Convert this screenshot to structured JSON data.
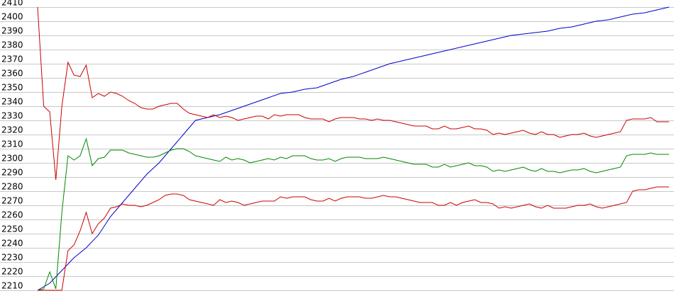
{
  "chart_data": {
    "type": "line",
    "title": "",
    "xlabel": "",
    "ylabel": "",
    "ylim": [
      2210,
      2410
    ],
    "yticks": [
      2210,
      2220,
      2230,
      2240,
      2250,
      2260,
      2270,
      2280,
      2290,
      2300,
      2310,
      2320,
      2330,
      2340,
      2350,
      2360,
      2370,
      2380,
      2390,
      2400,
      2410
    ],
    "xlim": [
      0,
      104
    ],
    "grid": true,
    "legend": "none",
    "series": [
      {
        "color": "#0000cc",
        "x": [
          0,
          2,
          4,
          6,
          8,
          10,
          12,
          14,
          16,
          18,
          20,
          22,
          24,
          26,
          28,
          30,
          32,
          34,
          36,
          38,
          40,
          42,
          44,
          46,
          48,
          50,
          52,
          54,
          56,
          58,
          60,
          62,
          64,
          66,
          68,
          70,
          72,
          74,
          76,
          78,
          80,
          82,
          84,
          86,
          88,
          90,
          92,
          94,
          96,
          98,
          100,
          102,
          104
        ],
        "values": [
          2210,
          2215,
          2224,
          2233,
          2240,
          2249,
          2262,
          2272,
          2282,
          2292,
          2300,
          2310,
          2320,
          2330,
          2332,
          2334,
          2337,
          2340,
          2343,
          2346,
          2349,
          2350,
          2352,
          2353,
          2356,
          2359,
          2361,
          2364,
          2367,
          2370,
          2372,
          2374,
          2376,
          2378,
          2380,
          2382,
          2384,
          2386,
          2388,
          2390,
          2391,
          2392,
          2393,
          2395,
          2396,
          2398,
          2400,
          2401,
          2403,
          2405,
          2406,
          2408,
          2410
        ]
      },
      {
        "color": "#cc0000",
        "x": [
          0,
          1,
          2,
          3,
          4,
          5,
          6,
          7,
          8,
          9,
          10,
          11,
          12,
          13,
          14,
          15,
          16,
          17,
          18,
          19,
          20,
          21,
          22,
          23,
          24,
          25,
          26,
          27,
          28,
          29,
          30,
          31,
          32,
          33,
          34,
          35,
          36,
          37,
          38,
          39,
          40,
          41,
          42,
          43,
          44,
          45,
          46,
          47,
          48,
          49,
          50,
          51,
          52,
          53,
          54,
          55,
          56,
          57,
          58,
          59,
          60,
          61,
          62,
          63,
          64,
          65,
          66,
          67,
          68,
          69,
          70,
          71,
          72,
          73,
          74,
          75,
          76,
          77,
          78,
          79,
          80,
          81,
          82,
          83,
          84,
          85,
          86,
          87,
          88,
          89,
          90,
          91,
          92,
          93,
          94,
          95,
          96,
          97,
          98,
          99,
          100,
          101,
          102,
          103,
          104
        ],
        "values": [
          2410,
          2340,
          2336,
          2288,
          2340,
          2371,
          2362,
          2361,
          2369,
          2346,
          2349,
          2347,
          2350,
          2349,
          2347,
          2344,
          2342,
          2339,
          2338,
          2338,
          2340,
          2341,
          2342,
          2342,
          2338,
          2335,
          2334,
          2333,
          2332,
          2334,
          2332,
          2333,
          2332,
          2330,
          2331,
          2332,
          2333,
          2333,
          2331,
          2334,
          2333,
          2334,
          2334,
          2334,
          2332,
          2331,
          2331,
          2331,
          2329,
          2331,
          2332,
          2332,
          2332,
          2331,
          2331,
          2330,
          2331,
          2330,
          2330,
          2329,
          2328,
          2327,
          2326,
          2326,
          2326,
          2324,
          2324,
          2326,
          2324,
          2324,
          2325,
          2326,
          2324,
          2324,
          2323,
          2320,
          2321,
          2320,
          2321,
          2322,
          2323,
          2321,
          2320,
          2322,
          2320,
          2320,
          2318,
          2319,
          2320,
          2320,
          2321,
          2319,
          2318,
          2319,
          2320,
          2321,
          2322,
          2330,
          2331,
          2331,
          2331,
          2332,
          2329,
          2329,
          2329
        ]
      },
      {
        "color": "#008800",
        "x": [
          0,
          1,
          2,
          3,
          4,
          5,
          6,
          7,
          8,
          9,
          10,
          11,
          12,
          13,
          14,
          15,
          16,
          17,
          18,
          19,
          20,
          21,
          22,
          23,
          24,
          25,
          26,
          27,
          28,
          29,
          30,
          31,
          32,
          33,
          34,
          35,
          36,
          37,
          38,
          39,
          40,
          41,
          42,
          43,
          44,
          45,
          46,
          47,
          48,
          49,
          50,
          51,
          52,
          53,
          54,
          55,
          56,
          57,
          58,
          59,
          60,
          61,
          62,
          63,
          64,
          65,
          66,
          67,
          68,
          69,
          70,
          71,
          72,
          73,
          74,
          75,
          76,
          77,
          78,
          79,
          80,
          81,
          82,
          83,
          84,
          85,
          86,
          87,
          88,
          89,
          90,
          91,
          92,
          93,
          94,
          95,
          96,
          97,
          98,
          99,
          100,
          101,
          102,
          103,
          104
        ],
        "values": [
          2210,
          2211,
          2223,
          2211,
          2265,
          2305,
          2302,
          2305,
          2317,
          2298,
          2303,
          2304,
          2309,
          2309,
          2309,
          2307,
          2306,
          2305,
          2304,
          2304,
          2305,
          2307,
          2309,
          2310,
          2310,
          2308,
          2305,
          2304,
          2303,
          2302,
          2301,
          2304,
          2302,
          2303,
          2302,
          2300,
          2301,
          2302,
          2303,
          2302,
          2304,
          2303,
          2305,
          2305,
          2305,
          2303,
          2302,
          2302,
          2303,
          2301,
          2303,
          2304,
          2304,
          2304,
          2303,
          2303,
          2303,
          2304,
          2303,
          2302,
          2301,
          2300,
          2299,
          2299,
          2299,
          2297,
          2297,
          2299,
          2297,
          2298,
          2299,
          2300,
          2298,
          2298,
          2297,
          2294,
          2295,
          2294,
          2295,
          2296,
          2297,
          2295,
          2294,
          2296,
          2294,
          2294,
          2293,
          2294,
          2295,
          2295,
          2296,
          2294,
          2293,
          2294,
          2295,
          2296,
          2297,
          2305,
          2306,
          2306,
          2306,
          2307,
          2306,
          2306,
          2306
        ]
      },
      {
        "color": "#cc0000",
        "x": [
          0,
          1,
          2,
          3,
          4,
          5,
          6,
          7,
          8,
          9,
          10,
          11,
          12,
          13,
          14,
          15,
          16,
          17,
          18,
          19,
          20,
          21,
          22,
          23,
          24,
          25,
          26,
          27,
          28,
          29,
          30,
          31,
          32,
          33,
          34,
          35,
          36,
          37,
          38,
          39,
          40,
          41,
          42,
          43,
          44,
          45,
          46,
          47,
          48,
          49,
          50,
          51,
          52,
          53,
          54,
          55,
          56,
          57,
          58,
          59,
          60,
          61,
          62,
          63,
          64,
          65,
          66,
          67,
          68,
          69,
          70,
          71,
          72,
          73,
          74,
          75,
          76,
          77,
          78,
          79,
          80,
          81,
          82,
          83,
          84,
          85,
          86,
          87,
          88,
          89,
          90,
          91,
          92,
          93,
          94,
          95,
          96,
          97,
          98,
          99,
          100,
          101,
          102,
          103,
          104
        ],
        "values": [
          2210,
          2210,
          2210,
          2210,
          2210,
          2238,
          2242,
          2252,
          2265,
          2250,
          2257,
          2261,
          2268,
          2269,
          2271,
          2270,
          2270,
          2269,
          2270,
          2272,
          2274,
          2277,
          2278,
          2278,
          2277,
          2274,
          2273,
          2272,
          2271,
          2270,
          2274,
          2272,
          2273,
          2272,
          2270,
          2271,
          2272,
          2273,
          2273,
          2273,
          2276,
          2275,
          2276,
          2276,
          2276,
          2274,
          2273,
          2273,
          2275,
          2273,
          2275,
          2276,
          2276,
          2276,
          2275,
          2275,
          2276,
          2277,
          2276,
          2276,
          2275,
          2274,
          2273,
          2272,
          2272,
          2272,
          2270,
          2270,
          2272,
          2270,
          2272,
          2273,
          2274,
          2272,
          2272,
          2271,
          2268,
          2269,
          2268,
          2269,
          2270,
          2271,
          2269,
          2268,
          2270,
          2268,
          2268,
          2268,
          2269,
          2270,
          2270,
          2271,
          2269,
          2268,
          2269,
          2270,
          2271,
          2272,
          2280,
          2281,
          2281,
          2282,
          2283,
          2283,
          2283
        ]
      }
    ]
  }
}
